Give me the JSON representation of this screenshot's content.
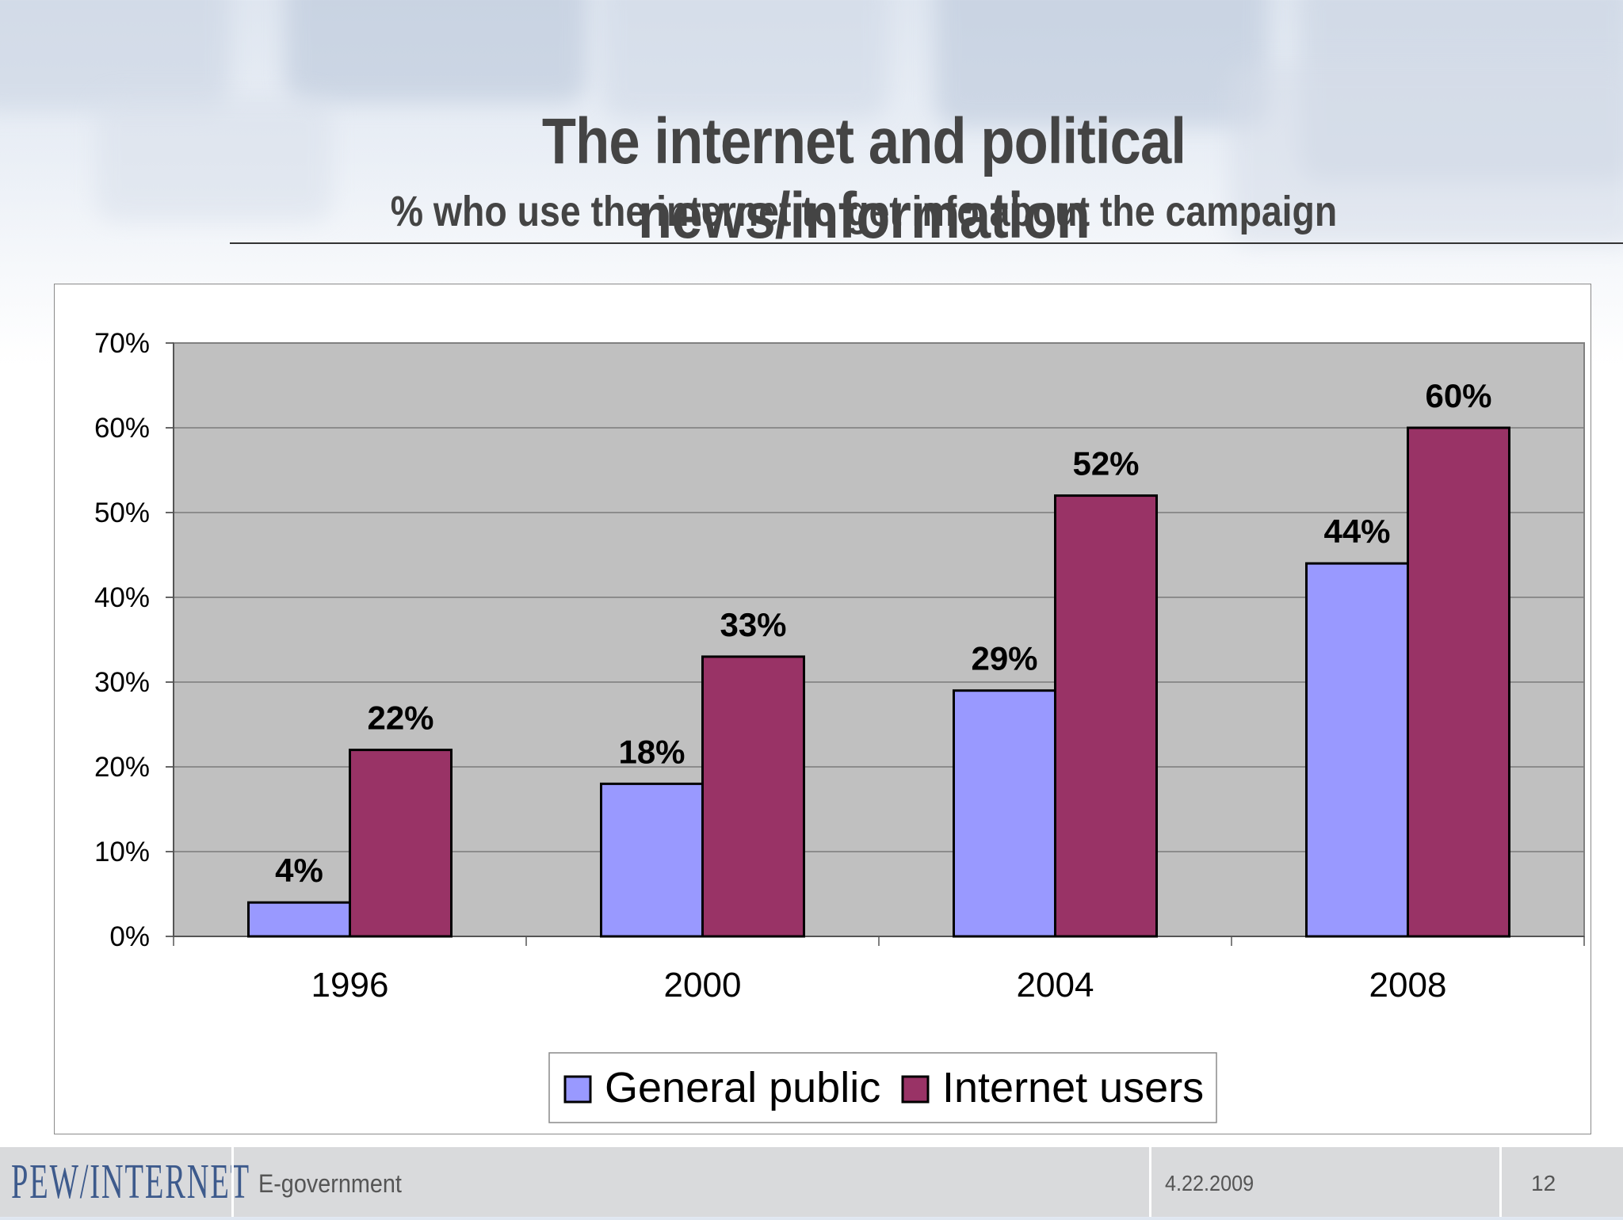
{
  "slide": {
    "title": "The internet and political news/information",
    "subtitle": "% who use the internet to get info about the campaign"
  },
  "footer": {
    "logo": "PEW/INTERNET",
    "section": "E-government",
    "date": "4.22.2009",
    "page": "12"
  },
  "chart_data": {
    "type": "bar",
    "title": "",
    "xlabel": "",
    "ylabel": "",
    "categories": [
      "1996",
      "2000",
      "2004",
      "2008"
    ],
    "series": [
      {
        "name": "General public",
        "values": [
          4,
          18,
          29,
          44
        ],
        "labels": [
          "4%",
          "18%",
          "29%",
          "44%"
        ],
        "color": "#9999ff"
      },
      {
        "name": "Internet users",
        "values": [
          22,
          33,
          52,
          60
        ],
        "labels": [
          "22%",
          "33%",
          "52%",
          "60%"
        ],
        "color": "#993366"
      }
    ],
    "ylim": [
      0,
      70
    ],
    "yticks": [
      0,
      10,
      20,
      30,
      40,
      50,
      60,
      70
    ],
    "ytick_labels": [
      "0%",
      "10%",
      "20%",
      "30%",
      "40%",
      "50%",
      "60%",
      "70%"
    ],
    "grid": true,
    "plot_background": "#c0c0c0",
    "legend_position": "bottom"
  }
}
